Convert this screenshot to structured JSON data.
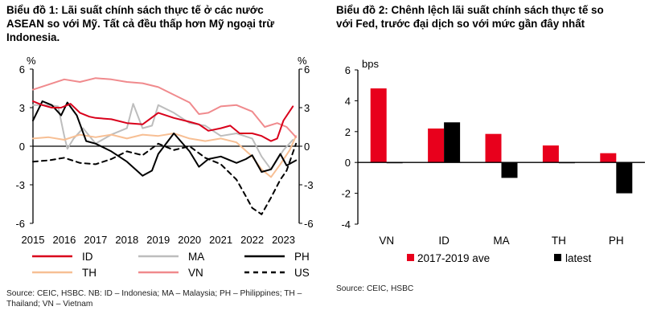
{
  "chart1": {
    "title_line1": "Biểu đồ 1: Lãi suất chính sách thực tế ở các nước",
    "title_line2": "ASEAN so với Mỹ. Tất cả đều thấp hơn Mỹ ngoại trừ",
    "title_line3": "Indonesia.",
    "source_line1": "Source: CEIC, HSBC. NB: ID – Indonesia; MA – Malaysia; PH – Philippines; TH –",
    "source_line2": "Thailand; VN – Vietnam",
    "left_unit": "%",
    "right_unit": "%"
  },
  "chart2": {
    "title_line1": "Biểu đồ 2: Chênh lệch lãi suất chính sách thực tế so",
    "title_line2": "với Fed, trước đại dịch so với mức gần đây nhất",
    "source": "Source: CEIC, HSBC",
    "unit": "bps"
  },
  "colors": {
    "ID": "#d9001b",
    "MA": "#bdbdbd",
    "PH": "#000000",
    "TH": "#f7bf94",
    "VN": "#f08a8d",
    "US": "#000000",
    "bar_ave": "#e8001c",
    "bar_latest": "#000000"
  },
  "chart_data": [
    {
      "type": "line",
      "title": "Biểu đồ 1: Lãi suất chính sách thực tế ở các nước ASEAN so với Mỹ. Tất cả đều thấp hơn Mỹ ngoại trừ Indonesia.",
      "xlabel": "",
      "ylabel": "%",
      "x_ticks": [
        "2015",
        "2016",
        "2017",
        "2018",
        "2019",
        "2020",
        "2021",
        "2022",
        "2023"
      ],
      "xlim": [
        2015.0,
        2023.5
      ],
      "ylim": [
        -6,
        6
      ],
      "y_ticks": [
        "6",
        "3",
        "0",
        "-3",
        "-6"
      ],
      "y_ticks_right": [
        "6",
        "3",
        "0",
        "-3",
        "-6"
      ],
      "grid": false,
      "legend_position": "bottom",
      "series": [
        {
          "name": "ID",
          "style": "solid",
          "x": [
            2015.0,
            2015.3,
            2015.6,
            2015.9,
            2016.2,
            2016.5,
            2016.8,
            2017.0,
            2017.5,
            2018.0,
            2018.5,
            2019.0,
            2019.5,
            2020.0,
            2020.3,
            2020.6,
            2021.0,
            2021.3,
            2021.6,
            2022.0,
            2022.3,
            2022.6,
            2022.8,
            2023.0,
            2023.3
          ],
          "values": [
            3.5,
            3.2,
            3.0,
            3.0,
            3.3,
            2.6,
            2.3,
            2.2,
            2.1,
            1.8,
            1.7,
            2.6,
            2.2,
            1.9,
            1.7,
            1.2,
            1.4,
            1.6,
            1.0,
            1.0,
            0.8,
            0.4,
            0.6,
            2.0,
            3.1
          ]
        },
        {
          "name": "MA",
          "style": "solid",
          "x": [
            2015.0,
            2015.5,
            2015.8,
            2016.0,
            2016.1,
            2016.3,
            2016.6,
            2017.0,
            2017.5,
            2018.0,
            2018.2,
            2018.5,
            2018.8,
            2019.0,
            2019.5,
            2020.0,
            2020.5,
            2021.0,
            2021.5,
            2022.0,
            2022.3,
            2022.6,
            2023.0,
            2023.3
          ],
          "values": [
            3.2,
            3.2,
            3.1,
            0.8,
            -0.2,
            0.6,
            1.4,
            0.2,
            0.9,
            1.4,
            3.3,
            1.4,
            1.6,
            3.2,
            2.6,
            1.8,
            1.6,
            0.8,
            1.0,
            0.6,
            -0.8,
            -1.8,
            -0.3,
            0.5
          ]
        },
        {
          "name": "PH",
          "style": "solid",
          "x": [
            2015.0,
            2015.3,
            2015.6,
            2015.9,
            2016.1,
            2016.4,
            2016.7,
            2017.0,
            2017.5,
            2018.0,
            2018.5,
            2018.8,
            2019.0,
            2019.5,
            2020.0,
            2020.3,
            2020.6,
            2021.0,
            2021.5,
            2021.8,
            2022.0,
            2022.3,
            2022.6,
            2022.9,
            2023.1,
            2023.4
          ],
          "values": [
            2.0,
            3.5,
            3.2,
            2.4,
            3.4,
            2.4,
            0.4,
            0.2,
            -0.4,
            -1.2,
            -2.3,
            -1.9,
            -0.6,
            1.0,
            -0.4,
            -1.6,
            -1.0,
            -0.8,
            -1.3,
            -1.0,
            -0.7,
            -2.0,
            -1.8,
            -0.6,
            -1.5,
            -1.1
          ]
        },
        {
          "name": "TH",
          "style": "solid",
          "x": [
            2015.0,
            2015.5,
            2016.0,
            2016.5,
            2017.0,
            2017.5,
            2018.0,
            2018.5,
            2019.0,
            2019.5,
            2020.0,
            2020.5,
            2021.0,
            2021.5,
            2022.0,
            2022.3,
            2022.6,
            2022.9,
            2023.2,
            2023.4
          ],
          "values": [
            0.6,
            0.7,
            0.5,
            0.9,
            0.7,
            0.9,
            0.6,
            0.9,
            0.8,
            1.0,
            0.6,
            0.4,
            0.6,
            0.3,
            -0.8,
            -1.8,
            -2.4,
            -1.4,
            -0.3,
            0.8
          ]
        },
        {
          "name": "VN",
          "style": "solid",
          "x": [
            2015.0,
            2015.5,
            2016.0,
            2016.5,
            2017.0,
            2017.5,
            2018.0,
            2018.5,
            2019.0,
            2019.5,
            2020.0,
            2020.3,
            2020.6,
            2021.0,
            2021.5,
            2022.0,
            2022.4,
            2022.8,
            2023.1,
            2023.4
          ],
          "values": [
            4.4,
            4.8,
            5.2,
            5.0,
            5.3,
            5.2,
            5.0,
            4.9,
            4.6,
            4.0,
            3.4,
            2.5,
            2.6,
            3.1,
            3.2,
            2.7,
            1.5,
            1.8,
            1.5,
            0.7
          ]
        },
        {
          "name": "US",
          "style": "dashed",
          "x": [
            2015.0,
            2015.5,
            2016.0,
            2016.5,
            2017.0,
            2017.5,
            2018.0,
            2018.5,
            2019.0,
            2019.5,
            2020.0,
            2020.5,
            2021.0,
            2021.5,
            2021.8,
            2022.0,
            2022.3,
            2022.6,
            2022.9,
            2023.1,
            2023.4
          ],
          "values": [
            -1.2,
            -1.1,
            -0.9,
            -1.3,
            -1.4,
            -1.0,
            -0.4,
            -0.7,
            0.2,
            -0.3,
            0.0,
            -0.9,
            -1.4,
            -2.6,
            -3.9,
            -4.8,
            -5.3,
            -4.0,
            -2.6,
            -1.9,
            0.2
          ]
        }
      ]
    },
    {
      "type": "bar",
      "title": "Biểu đồ 2: Chênh lệch lãi suất chính sách thực tế so với Fed, trước đại dịch so với mức gần đây nhất",
      "xlabel": "",
      "ylabel": "bps",
      "categories": [
        "VN",
        "ID",
        "MA",
        "TH",
        "PH"
      ],
      "ylim": [
        -4,
        6
      ],
      "y_ticks": [
        "6",
        "4",
        "2",
        "0",
        "-2",
        "-4"
      ],
      "grid": false,
      "legend_position": "bottom",
      "series": [
        {
          "name": "2017-2019 ave",
          "values": [
            4.8,
            2.2,
            1.85,
            1.1,
            0.6
          ]
        },
        {
          "name": "latest",
          "values": [
            -0.05,
            2.6,
            -1.0,
            -0.05,
            -2.0
          ]
        }
      ]
    }
  ]
}
